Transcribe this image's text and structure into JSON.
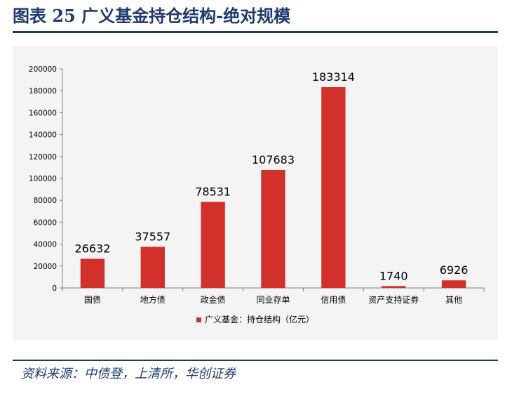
{
  "figure": {
    "title": "图表 25    广义基金持仓结构-绝对规模",
    "source": "资料来源：中债登，上清所，华创证券"
  },
  "colors": {
    "bar": "#d2302b",
    "title": "#1f3a6f",
    "axis": "#7f7f7f"
  },
  "chart_data": {
    "type": "bar",
    "categories": [
      "国债",
      "地方债",
      "政金债",
      "同业存单",
      "信用债",
      "资产支持证券",
      "其他"
    ],
    "series": [
      {
        "name": "广义基金：持仓结构（亿元）",
        "values": [
          26632,
          37557,
          78531,
          107683,
          183314,
          1740,
          6926
        ]
      }
    ],
    "ylim": [
      0,
      200000
    ],
    "yticks": [
      0,
      20000,
      40000,
      60000,
      80000,
      100000,
      120000,
      140000,
      160000,
      180000,
      200000
    ],
    "data_labels": true,
    "legend": "bottom-center",
    "grid": false
  }
}
